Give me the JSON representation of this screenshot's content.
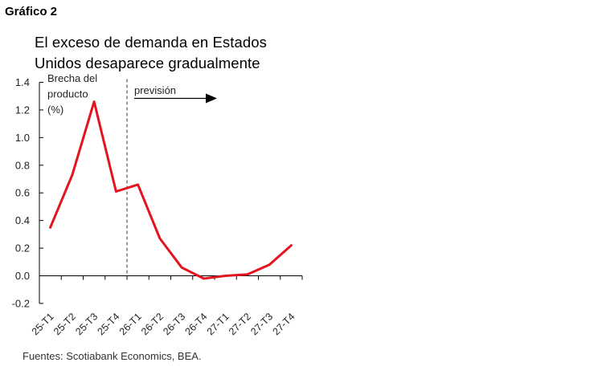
{
  "figure_label": "Gráfico 2",
  "title_lines": [
    "El exceso de demanda en Estados",
    "Unidos desaparece gradualmente"
  ],
  "source": "Fuentes: Scotiabank Economics, BEA.",
  "forecast_label": "previsión",
  "chart_data": {
    "type": "line",
    "title": "El exceso de demanda en Estados Unidos desaparece gradualmente",
    "ylabel_lines": [
      "Brecha del",
      "producto",
      "(%)"
    ],
    "ylim": [
      -0.2,
      1.4
    ],
    "yticks": [
      -0.2,
      0.0,
      0.2,
      0.4,
      0.6,
      0.8,
      1.0,
      1.2,
      1.4
    ],
    "ytick_labels": [
      "-0.2",
      "0.0",
      "0.2",
      "0.4",
      "0.6",
      "0.8",
      "1.0",
      "1.2",
      "1.4"
    ],
    "categories": [
      "25-T1",
      "25-T2",
      "25-T3",
      "25-T4",
      "26-T1",
      "26-T2",
      "26-T3",
      "26-T4",
      "27-T1",
      "27-T2",
      "27-T3",
      "27-T4"
    ],
    "series": [
      {
        "values": [
          0.35,
          0.73,
          1.26,
          0.61,
          0.66,
          0.27,
          0.06,
          -0.02,
          0.0,
          0.01,
          0.08,
          0.22
        ],
        "color": "#e3141f"
      }
    ],
    "forecast_divider_between": [
      "25-T4",
      "26-T1"
    ],
    "grid": false,
    "legend": "none"
  }
}
